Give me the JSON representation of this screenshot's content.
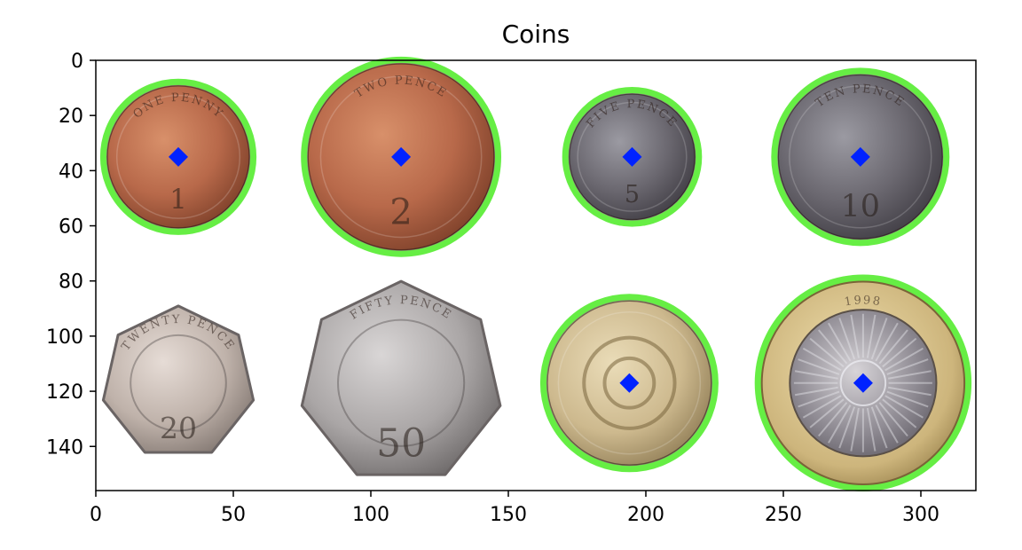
{
  "figure": {
    "title": "Coins",
    "x_ticks": [
      "0",
      "50",
      "100",
      "150",
      "200",
      "250",
      "300"
    ],
    "y_ticks": [
      "0",
      "20",
      "40",
      "60",
      "80",
      "100",
      "120",
      "140"
    ],
    "x_range": [
      0,
      320
    ],
    "y_range": [
      156,
      0
    ],
    "colors": {
      "detection_circle": "#66ee44",
      "center_marker": "#0022ff"
    }
  },
  "coins": [
    {
      "id": "1p",
      "inscription": "ONE PENNY",
      "denomination": "1",
      "cx": 30,
      "cy": 35,
      "r": 26,
      "detected": true,
      "shape": "round",
      "metal": "copper"
    },
    {
      "id": "2p",
      "inscription": "TWO PENCE",
      "denomination": "2",
      "cx": 111,
      "cy": 35,
      "r": 34,
      "detected": true,
      "shape": "round",
      "metal": "copper"
    },
    {
      "id": "5p",
      "inscription": "FIVE PENCE",
      "denomination": "5",
      "cx": 195,
      "cy": 35,
      "r": 23,
      "detected": true,
      "shape": "round",
      "metal": "silver-dark"
    },
    {
      "id": "10p",
      "inscription": "TEN PENCE",
      "denomination": "10",
      "cx": 278,
      "cy": 35,
      "r": 30,
      "detected": true,
      "shape": "round",
      "metal": "silver-dark"
    },
    {
      "id": "20p",
      "inscription": "TWENTY PENCE",
      "denomination": "20",
      "cx": 30,
      "cy": 117,
      "r": 28,
      "detected": false,
      "shape": "heptagon",
      "metal": "silver-light"
    },
    {
      "id": "50p",
      "inscription": "FIFTY PENCE",
      "denomination": "50",
      "cx": 111,
      "cy": 117,
      "r": 37,
      "detected": false,
      "shape": "heptagon",
      "metal": "silver"
    },
    {
      "id": "1pound",
      "inscription": "",
      "denomination": "",
      "cx": 194,
      "cy": 117,
      "r": 30,
      "detected": true,
      "shape": "round",
      "metal": "brass"
    },
    {
      "id": "2pound",
      "inscription": "1998",
      "denomination": "",
      "cx": 279,
      "cy": 117,
      "r": 37,
      "detected": true,
      "shape": "bimetal",
      "metal": "bimetal"
    }
  ]
}
